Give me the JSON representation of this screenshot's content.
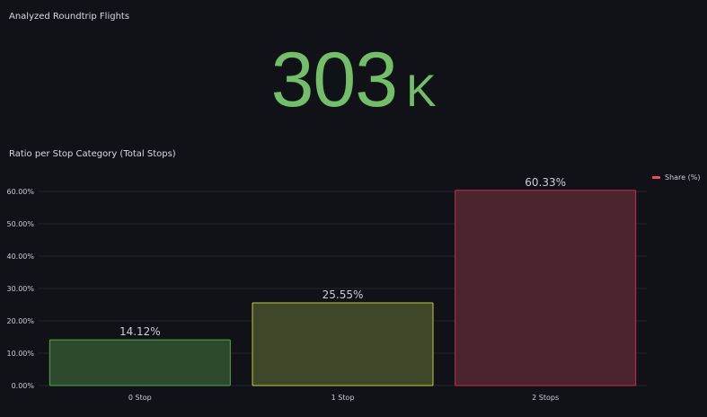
{
  "stat_panel": {
    "title": "Analyzed Roundtrip Flights",
    "value": "303",
    "unit": "K",
    "color": "#73bf69"
  },
  "chart_panel": {
    "title": "Ratio per Stop Category (Total Stops)",
    "legend": "Share (%)"
  },
  "chart_data": {
    "type": "bar",
    "categories": [
      "0 Stop",
      "1 Stop",
      "2 Stops"
    ],
    "series": [
      {
        "name": "Share (%)",
        "values": [
          14.12,
          25.55,
          60.33
        ]
      }
    ],
    "value_labels": [
      "14.12%",
      "25.55%",
      "60.33%"
    ],
    "ylim": [
      0,
      60
    ],
    "yticks": [
      "0.00%",
      "10.00%",
      "20.00%",
      "30.00%",
      "40.00%",
      "50.00%",
      "60.00%"
    ],
    "colors": {
      "bars": [
        "#56a64b",
        "#c8c83a",
        "#c4314b"
      ],
      "fills": [
        "#2d4a2e",
        "#3e4829",
        "#4b242e"
      ]
    },
    "legend_position": "top-right",
    "grid": true
  }
}
